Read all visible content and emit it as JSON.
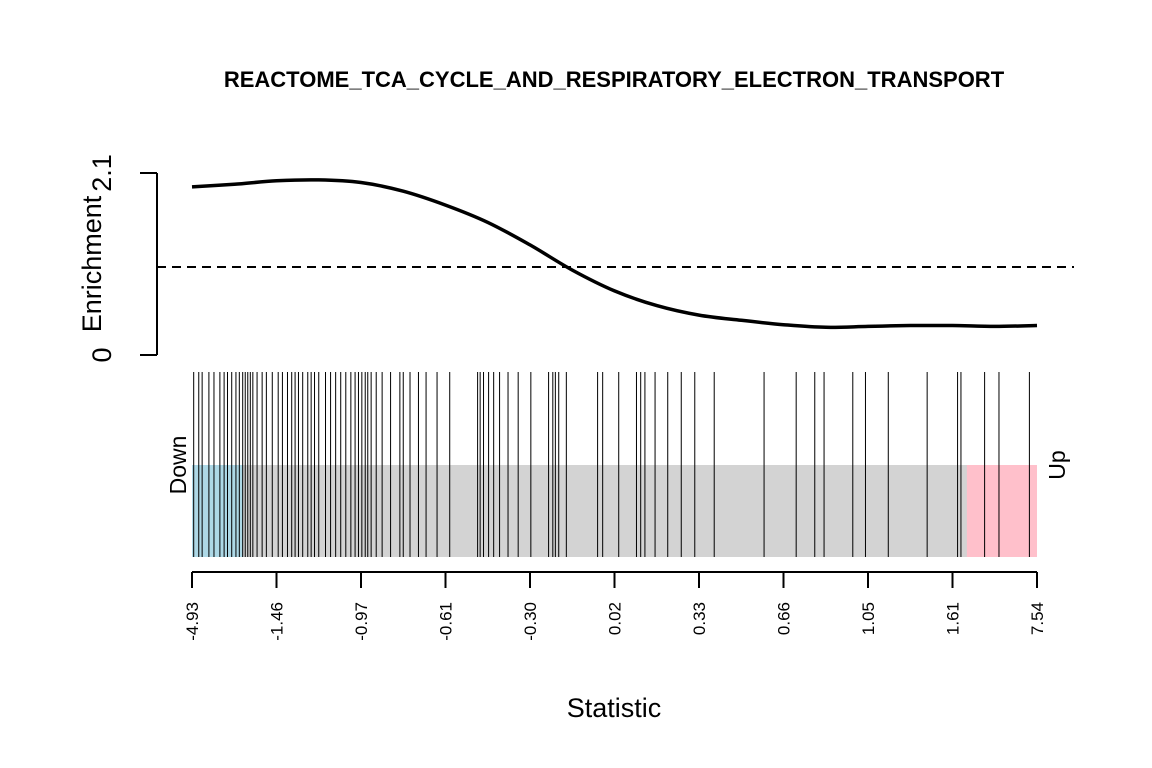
{
  "chart_data": {
    "type": "barcode",
    "title": "REACTOME_TCA_CYCLE_AND_RESPIRATORY_ELECTRON_TRANSPORT",
    "xlabel": "Statistic",
    "ylabel": "Enrichment",
    "x_ticks": [
      "-4.93",
      "-1.46",
      "-0.97",
      "-0.61",
      "-0.30",
      "0.02",
      "0.33",
      "0.66",
      "1.05",
      "1.61",
      "7.54"
    ],
    "y_ticks": [
      "0",
      "2.1"
    ],
    "ylim": [
      0,
      2.1
    ],
    "reference_line_y": 1.0,
    "down_label": "Down",
    "up_label": "Up",
    "colors": {
      "down": "#ADD8E6",
      "middle": "#D3D3D3",
      "up": "#FFC0CB",
      "line": "#000000"
    },
    "regions": {
      "down_end_rank": 0.06,
      "up_start_rank": 0.917
    },
    "enrichment_curve": {
      "rank": [
        0.0,
        0.05,
        0.1,
        0.15,
        0.2,
        0.25,
        0.3,
        0.35,
        0.4,
        0.45,
        0.5,
        0.55,
        0.6,
        0.65,
        0.7,
        0.75,
        0.8,
        0.85,
        0.9,
        0.95,
        1.0
      ],
      "enrichment": [
        1.94,
        1.97,
        2.01,
        2.02,
        1.99,
        1.89,
        1.73,
        1.53,
        1.27,
        0.98,
        0.74,
        0.57,
        0.46,
        0.4,
        0.35,
        0.32,
        0.33,
        0.34,
        0.34,
        0.33,
        0.34
      ]
    },
    "gene_ranks": [
      0.002,
      0.008,
      0.012,
      0.02,
      0.026,
      0.033,
      0.038,
      0.042,
      0.047,
      0.052,
      0.056,
      0.06,
      0.063,
      0.066,
      0.069,
      0.072,
      0.077,
      0.083,
      0.088,
      0.095,
      0.102,
      0.107,
      0.113,
      0.118,
      0.122,
      0.126,
      0.131,
      0.137,
      0.141,
      0.145,
      0.15,
      0.158,
      0.164,
      0.17,
      0.176,
      0.182,
      0.188,
      0.193,
      0.197,
      0.201,
      0.205,
      0.208,
      0.212,
      0.218,
      0.225,
      0.235,
      0.246,
      0.25,
      0.258,
      0.268,
      0.277,
      0.29,
      0.305,
      0.338,
      0.341,
      0.345,
      0.351,
      0.357,
      0.364,
      0.374,
      0.386,
      0.401,
      0.422,
      0.427,
      0.43,
      0.434,
      0.443,
      0.48,
      0.486,
      0.505,
      0.526,
      0.531,
      0.536,
      0.548,
      0.563,
      0.579,
      0.595,
      0.618,
      0.677,
      0.715,
      0.737,
      0.748,
      0.782,
      0.797,
      0.824,
      0.87,
      0.906,
      0.91,
      0.938,
      0.955,
      0.991
    ]
  }
}
